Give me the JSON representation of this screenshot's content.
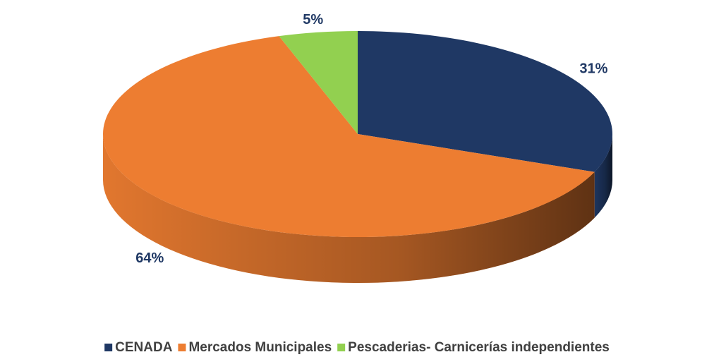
{
  "chart_data": {
    "type": "pie",
    "categories": [
      "CENADA",
      "Mercados Municipales",
      "Pescaderias- Carnicerías independientes"
    ],
    "values": [
      31,
      64,
      5
    ],
    "value_labels": [
      "31%",
      "64%",
      "5%"
    ],
    "colors": [
      "#1f3864",
      "#ed7d31",
      "#92d050"
    ],
    "legend": "bottom"
  }
}
